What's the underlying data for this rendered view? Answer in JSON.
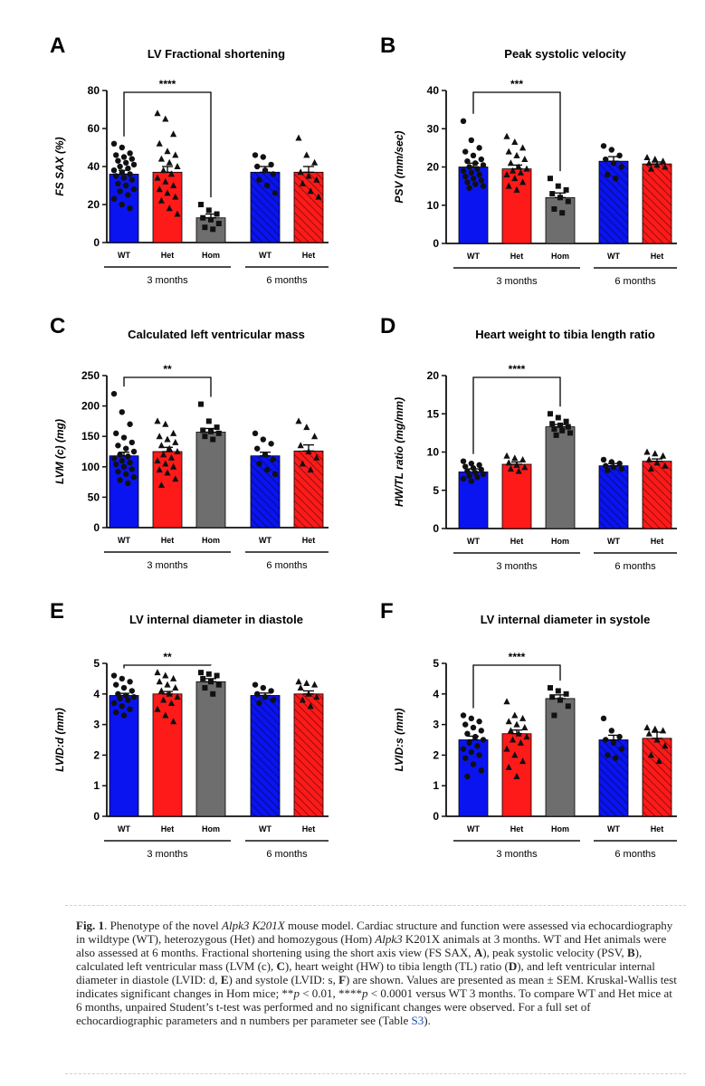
{
  "figure_caption": {
    "fig_label": "Fig. 1",
    "p1": ".  Phenotype of the novel ",
    "i1": "Alpk3 K201X",
    "p2": " mouse model. Cardiac structure and function were assessed via echocardiography in wildtype (WT), heterozygous (Het) and homozygous (Hom) ",
    "i2": "Alpk3",
    "p3": " K201X animals at 3 months. WT and Het animals were also assessed at 6 months. Fractional shortening using the short axis view (FS SAX, ",
    "b_a": "A",
    "p4": "), peak systolic velocity (PSV, ",
    "b_b": "B",
    "p5": "), calculated left ventricular mass (LVM (c), ",
    "b_c": "C",
    "p6": "), heart weight (HW) to tibia length (TL) ratio (",
    "b_d": "D",
    "p7": "), and left ventricular internal diameter in diastole (LVID: d, ",
    "b_e": "E",
    "p8": ") and systole (LVID: s, ",
    "b_f": "F",
    "p9": ") are shown. Values are presented as mean ± SEM. Kruskal-Wallis test indicates significant changes in Hom mice; **",
    "i_p1": "p",
    "p10": " < 0.01, ****",
    "i_p2": "p",
    "p11": " < 0.0001 versus WT 3 months. To compare WT and Het mice at 6 months, unpaired Student’s t-test was performed and no significant changes were observed. For a full set of echocardiographic parameters and n numbers per parameter see (Table ",
    "ref": "S3",
    "p12": ")."
  },
  "chart_data": [
    {
      "panel": "A",
      "type": "bar",
      "title": "LV Fractional shortening",
      "ylabel": "FS SAX (%)",
      "ylim": [
        0,
        80
      ],
      "yticks": [
        0,
        20,
        40,
        60,
        80
      ],
      "categories": [
        "WT",
        "Het",
        "Hom",
        "WT",
        "Het"
      ],
      "groups": [
        {
          "label": "3 months",
          "span": [
            0,
            2
          ]
        },
        {
          "label": "6 months",
          "span": [
            3,
            4
          ]
        }
      ],
      "means": [
        36,
        37,
        13,
        37,
        37
      ],
      "sem": [
        2,
        3,
        2,
        3,
        3
      ],
      "points": [
        [
          52,
          50,
          47,
          46,
          45,
          44,
          43,
          42,
          41,
          40,
          39,
          38,
          37,
          36,
          35,
          34,
          33,
          31,
          30,
          28,
          27,
          25,
          23,
          20,
          18
        ],
        [
          68,
          65,
          57,
          52,
          48,
          46,
          44,
          42,
          40,
          38,
          36,
          34,
          32,
          30,
          28,
          26,
          24,
          22,
          18,
          15
        ],
        [
          20,
          17,
          15,
          13,
          12,
          10,
          8,
          7
        ],
        [
          46,
          45,
          41,
          40,
          38,
          36,
          33,
          30,
          26
        ],
        [
          55,
          46,
          42,
          37,
          35,
          33,
          31,
          27,
          24
        ]
      ],
      "markers": [
        "circle",
        "triangle",
        "square",
        "circle",
        "triangle"
      ],
      "significance": {
        "from": 0,
        "to": 2,
        "label": "****"
      }
    },
    {
      "panel": "B",
      "type": "bar",
      "title": "Peak systolic velocity",
      "ylabel": "PSV (mm/sec)",
      "ylim": [
        0,
        40
      ],
      "yticks": [
        0,
        10,
        20,
        30,
        40
      ],
      "categories": [
        "WT",
        "Het",
        "Hom",
        "WT",
        "Het"
      ],
      "groups": [
        {
          "label": "3 months",
          "span": [
            0,
            2
          ]
        },
        {
          "label": "6 months",
          "span": [
            3,
            4
          ]
        }
      ],
      "means": [
        20,
        19.5,
        12,
        21.5,
        20.8
      ],
      "sem": [
        1,
        1,
        1.2,
        1.2,
        0.5
      ],
      "points": [
        [
          32,
          27,
          25,
          24,
          23,
          22,
          21.5,
          21,
          20.5,
          20,
          19.5,
          19,
          18.5,
          18,
          17.5,
          17,
          16.5,
          16,
          15.5,
          15,
          14.5
        ],
        [
          28,
          26.5,
          25,
          24,
          23,
          22,
          21,
          20,
          19.5,
          19,
          18.5,
          18,
          17,
          16,
          15,
          14
        ],
        [
          17,
          15,
          14,
          13,
          12,
          11,
          9,
          8
        ],
        [
          25.5,
          24.5,
          23,
          22,
          21,
          20,
          18,
          17
        ],
        [
          22.5,
          22,
          21.5,
          21,
          20.5,
          20,
          19.5
        ]
      ],
      "markers": [
        "circle",
        "triangle",
        "square",
        "circle",
        "triangle"
      ],
      "significance": {
        "from": 0,
        "to": 2,
        "label": "***"
      }
    },
    {
      "panel": "C",
      "type": "bar",
      "title": "Calculated left ventricular mass",
      "ylabel": "LVM (c) (mg)",
      "ylim": [
        0,
        250
      ],
      "yticks": [
        0,
        50,
        100,
        150,
        200,
        250
      ],
      "categories": [
        "WT",
        "Het",
        "Hom",
        "WT",
        "Het"
      ],
      "groups": [
        {
          "label": "3 months",
          "span": [
            0,
            2
          ]
        },
        {
          "label": "6 months",
          "span": [
            3,
            4
          ]
        }
      ],
      "means": [
        118,
        125,
        157,
        118,
        126
      ],
      "sem": [
        6,
        7,
        6,
        6,
        10
      ],
      "points": [
        [
          220,
          190,
          170,
          155,
          148,
          140,
          135,
          130,
          125,
          120,
          117,
          114,
          110,
          107,
          104,
          100,
          96,
          92,
          88,
          83,
          78,
          73
        ],
        [
          175,
          170,
          155,
          150,
          145,
          140,
          135,
          130,
          125,
          120,
          115,
          110,
          105,
          100,
          95,
          90,
          80,
          70
        ],
        [
          203,
          175,
          165,
          160,
          158,
          155,
          150,
          145
        ],
        [
          155,
          145,
          138,
          130,
          120,
          112,
          105,
          95,
          88
        ],
        [
          175,
          165,
          150,
          135,
          125,
          115,
          105,
          95
        ]
      ],
      "markers": [
        "circle",
        "triangle",
        "square",
        "circle",
        "triangle"
      ],
      "significance": {
        "from": 0,
        "to": 2,
        "label": "**"
      }
    },
    {
      "panel": "D",
      "type": "bar",
      "title": "Heart weight to tibia length ratio",
      "ylabel": "HW/TL ratio (mg/mm)",
      "ylim": [
        0,
        20
      ],
      "yticks": [
        0,
        5,
        10,
        15,
        20
      ],
      "categories": [
        "WT",
        "Het",
        "Hom",
        "WT",
        "Het"
      ],
      "groups": [
        {
          "label": "3 months",
          "span": [
            0,
            2
          ]
        },
        {
          "label": "6 months",
          "span": [
            3,
            4
          ]
        }
      ],
      "means": [
        7.4,
        8.4,
        13.3,
        8.2,
        8.8
      ],
      "sem": [
        0.4,
        0.3,
        0.3,
        0.3,
        0.3
      ],
      "points": [
        [
          8.8,
          8.5,
          8.3,
          8.1,
          7.9,
          7.7,
          7.5,
          7.3,
          7.1,
          6.9,
          6.7,
          6.5,
          6.2
        ],
        [
          9.5,
          9.2,
          9.0,
          8.6,
          8.3,
          8.0,
          7.8,
          7.5
        ],
        [
          15.0,
          14.5,
          14.0,
          13.7,
          13.5,
          13.3,
          13.0,
          12.8,
          12.5,
          12.2
        ],
        [
          9.0,
          8.7,
          8.5,
          8.2,
          8.0,
          7.8,
          7.6
        ],
        [
          10.0,
          9.8,
          9.5,
          9.0,
          8.6,
          8.2,
          7.8
        ]
      ],
      "markers": [
        "circle",
        "triangle",
        "square",
        "circle",
        "triangle"
      ],
      "significance": {
        "from": 0,
        "to": 2,
        "label": "****"
      }
    },
    {
      "panel": "E",
      "type": "bar",
      "title": "LV internal diameter in diastole",
      "ylabel": "LVID:d (mm)",
      "ylim": [
        0,
        5
      ],
      "yticks": [
        0,
        1,
        2,
        3,
        4,
        5
      ],
      "categories": [
        "WT",
        "Het",
        "Hom",
        "WT",
        "Het"
      ],
      "groups": [
        {
          "label": "3 months",
          "span": [
            0,
            2
          ]
        },
        {
          "label": "6 months",
          "span": [
            3,
            4
          ]
        }
      ],
      "means": [
        3.95,
        4.0,
        4.4,
        3.95,
        4.0
      ],
      "sem": [
        0.07,
        0.08,
        0.1,
        0.08,
        0.1
      ],
      "points": [
        [
          4.6,
          4.5,
          4.4,
          4.3,
          4.2,
          4.1,
          4.0,
          3.95,
          3.9,
          3.85,
          3.8,
          3.7,
          3.6,
          3.5,
          3.4,
          3.3
        ],
        [
          4.7,
          4.6,
          4.5,
          4.4,
          4.3,
          4.2,
          4.1,
          4.0,
          3.9,
          3.8,
          3.7,
          3.5,
          3.3,
          3.1
        ],
        [
          4.7,
          4.65,
          4.6,
          4.5,
          4.4,
          4.3,
          4.2,
          4.0
        ],
        [
          4.3,
          4.2,
          4.1,
          4.0,
          3.9,
          3.8,
          3.7
        ],
        [
          4.4,
          4.35,
          4.3,
          4.2,
          4.0,
          3.9,
          3.8,
          3.6
        ]
      ],
      "markers": [
        "circle",
        "triangle",
        "square",
        "circle",
        "triangle"
      ],
      "significance": {
        "from": 0,
        "to": 2,
        "label": "**"
      }
    },
    {
      "panel": "F",
      "type": "bar",
      "title": "LV internal diameter in systole",
      "ylabel": "LVID:s (mm)",
      "ylim": [
        0,
        5
      ],
      "yticks": [
        0,
        1,
        2,
        3,
        4,
        5
      ],
      "categories": [
        "WT",
        "Het",
        "Hom",
        "WT",
        "Het"
      ],
      "groups": [
        {
          "label": "3 months",
          "span": [
            0,
            2
          ]
        },
        {
          "label": "6 months",
          "span": [
            3,
            4
          ]
        }
      ],
      "means": [
        2.5,
        2.7,
        3.85,
        2.5,
        2.55
      ],
      "sem": [
        0.12,
        0.12,
        0.12,
        0.15,
        0.2
      ],
      "points": [
        [
          3.3,
          3.2,
          3.1,
          3.0,
          2.9,
          2.8,
          2.7,
          2.6,
          2.5,
          2.4,
          2.3,
          2.2,
          2.1,
          2.0,
          1.9,
          1.7,
          1.5,
          1.3
        ],
        [
          3.75,
          3.3,
          3.2,
          3.1,
          3.0,
          2.9,
          2.8,
          2.7,
          2.6,
          2.5,
          2.4,
          2.2,
          2.0,
          1.8,
          1.6,
          1.3
        ],
        [
          4.2,
          4.1,
          4.0,
          3.9,
          3.8,
          3.6,
          3.3
        ],
        [
          3.2,
          2.8,
          2.6,
          2.5,
          2.4,
          2.2,
          2.0,
          1.9
        ],
        [
          2.9,
          2.85,
          2.8,
          2.7,
          2.5,
          2.3,
          2.0,
          1.8
        ]
      ],
      "markers": [
        "circle",
        "triangle",
        "square",
        "circle",
        "triangle"
      ],
      "significance": {
        "from": 0,
        "to": 2,
        "label": "****"
      }
    }
  ],
  "colors": {
    "wt": "#0a14f0",
    "het": "#ff1a1a",
    "hom": "#6e6e6e",
    "axis": "#111111",
    "marker": "#111111"
  }
}
